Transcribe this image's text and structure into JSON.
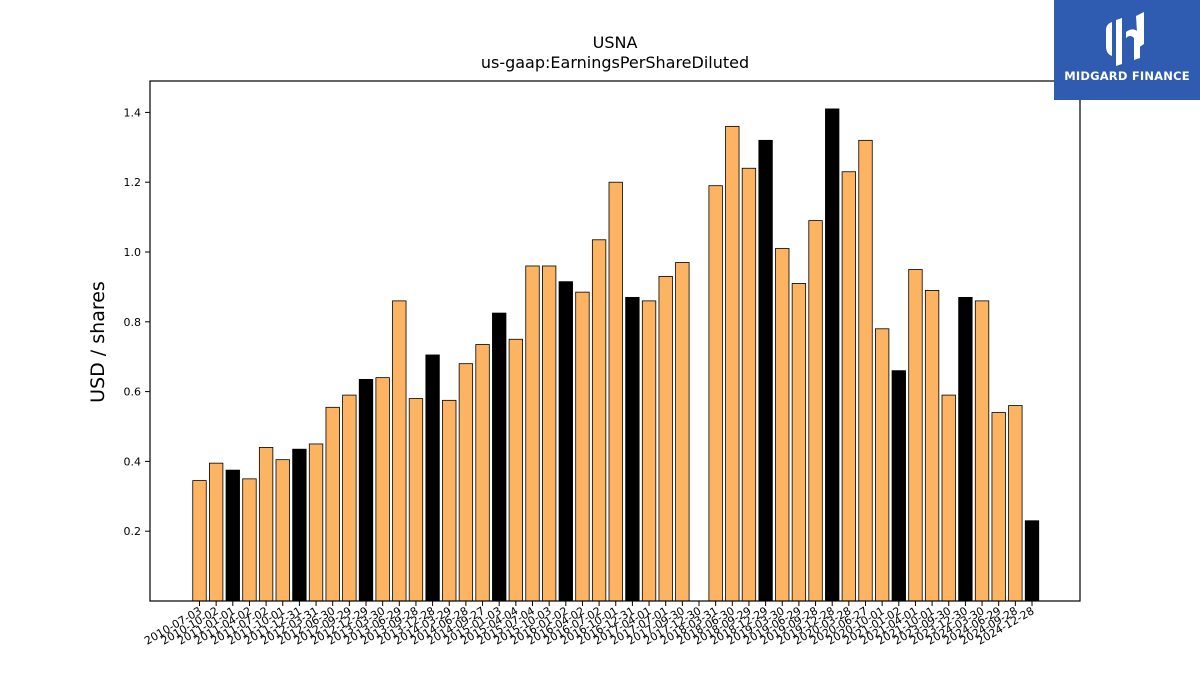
{
  "logo": {
    "text": "MIDGARD FINANCE",
    "icon": "midgard-logo-icon",
    "color": "#2f5bb0"
  },
  "colors": {
    "bar_default": "#fdb462",
    "bar_highlight": "#000000",
    "bar_edge": "#000000"
  },
  "chart_data": {
    "type": "bar",
    "title": "USNA",
    "subtitle": "us-gaap:EarningsPerShareDiluted",
    "ylabel": "USD / shares",
    "xlabel": "",
    "ylim": [
      0,
      1.49
    ],
    "yticks": [
      0.2,
      0.4,
      0.6,
      0.8,
      1.0,
      1.2,
      1.4
    ],
    "ytick_labels": [
      "0.2",
      "0.4",
      "0.6",
      "0.8",
      "1.0",
      "1.2",
      "1.4"
    ],
    "grid": false,
    "categories": [
      "2010-07-03",
      "2010-10-02",
      "2011-01-01",
      "2011-04-02",
      "2011-07-02",
      "2011-10-01",
      "2011-12-31",
      "2012-03-31",
      "2012-06-30",
      "2012-09-29",
      "2012-12-29",
      "2013-03-30",
      "2013-06-29",
      "2013-09-28",
      "2013-12-28",
      "2014-03-29",
      "2014-06-28",
      "2014-09-27",
      "2015-01-03",
      "2015-04-04",
      "2015-07-04",
      "2015-10-03",
      "2016-01-02",
      "2016-04-02",
      "2016-07-02",
      "2016-10-01",
      "2016-12-31",
      "2017-04-01",
      "2017-07-01",
      "2017-09-30",
      "2017-12-30",
      "2018-03-31",
      "2018-06-30",
      "2018-09-29",
      "2018-12-29",
      "2019-03-30",
      "2019-06-29",
      "2019-09-28",
      "2019-12-28",
      "2020-03-28",
      "2020-06-27",
      "2020-10-01",
      "2021-01-02",
      "2021-04-01",
      "2021-10-01",
      "2023-09-30",
      "2023-12-30",
      "2024-03-30",
      "2024-06-29",
      "2024-09-28",
      "2024-12-28"
    ],
    "values": [
      0.345,
      0.395,
      0.375,
      0.35,
      0.44,
      0.405,
      0.435,
      0.45,
      0.555,
      0.59,
      0.635,
      0.64,
      0.86,
      0.58,
      0.705,
      0.575,
      0.68,
      0.735,
      0.825,
      0.75,
      0.96,
      0.96,
      0.915,
      0.885,
      1.035,
      1.2,
      0.87,
      0.86,
      0.93,
      0.97,
      null,
      1.19,
      1.36,
      1.24,
      1.32,
      1.01,
      0.91,
      1.09,
      1.41,
      1.23,
      1.32,
      0.78,
      0.66,
      0.95,
      0.89,
      0.59,
      0.87,
      0.86,
      0.54,
      0.56,
      0.23
    ],
    "highlight": [
      false,
      false,
      true,
      false,
      false,
      false,
      true,
      false,
      false,
      false,
      true,
      false,
      false,
      false,
      true,
      false,
      false,
      false,
      true,
      false,
      false,
      false,
      true,
      false,
      false,
      false,
      true,
      false,
      false,
      false,
      false,
      false,
      false,
      false,
      true,
      false,
      false,
      false,
      true,
      false,
      false,
      false,
      true,
      false,
      false,
      false,
      true,
      false,
      false,
      false,
      true
    ]
  }
}
